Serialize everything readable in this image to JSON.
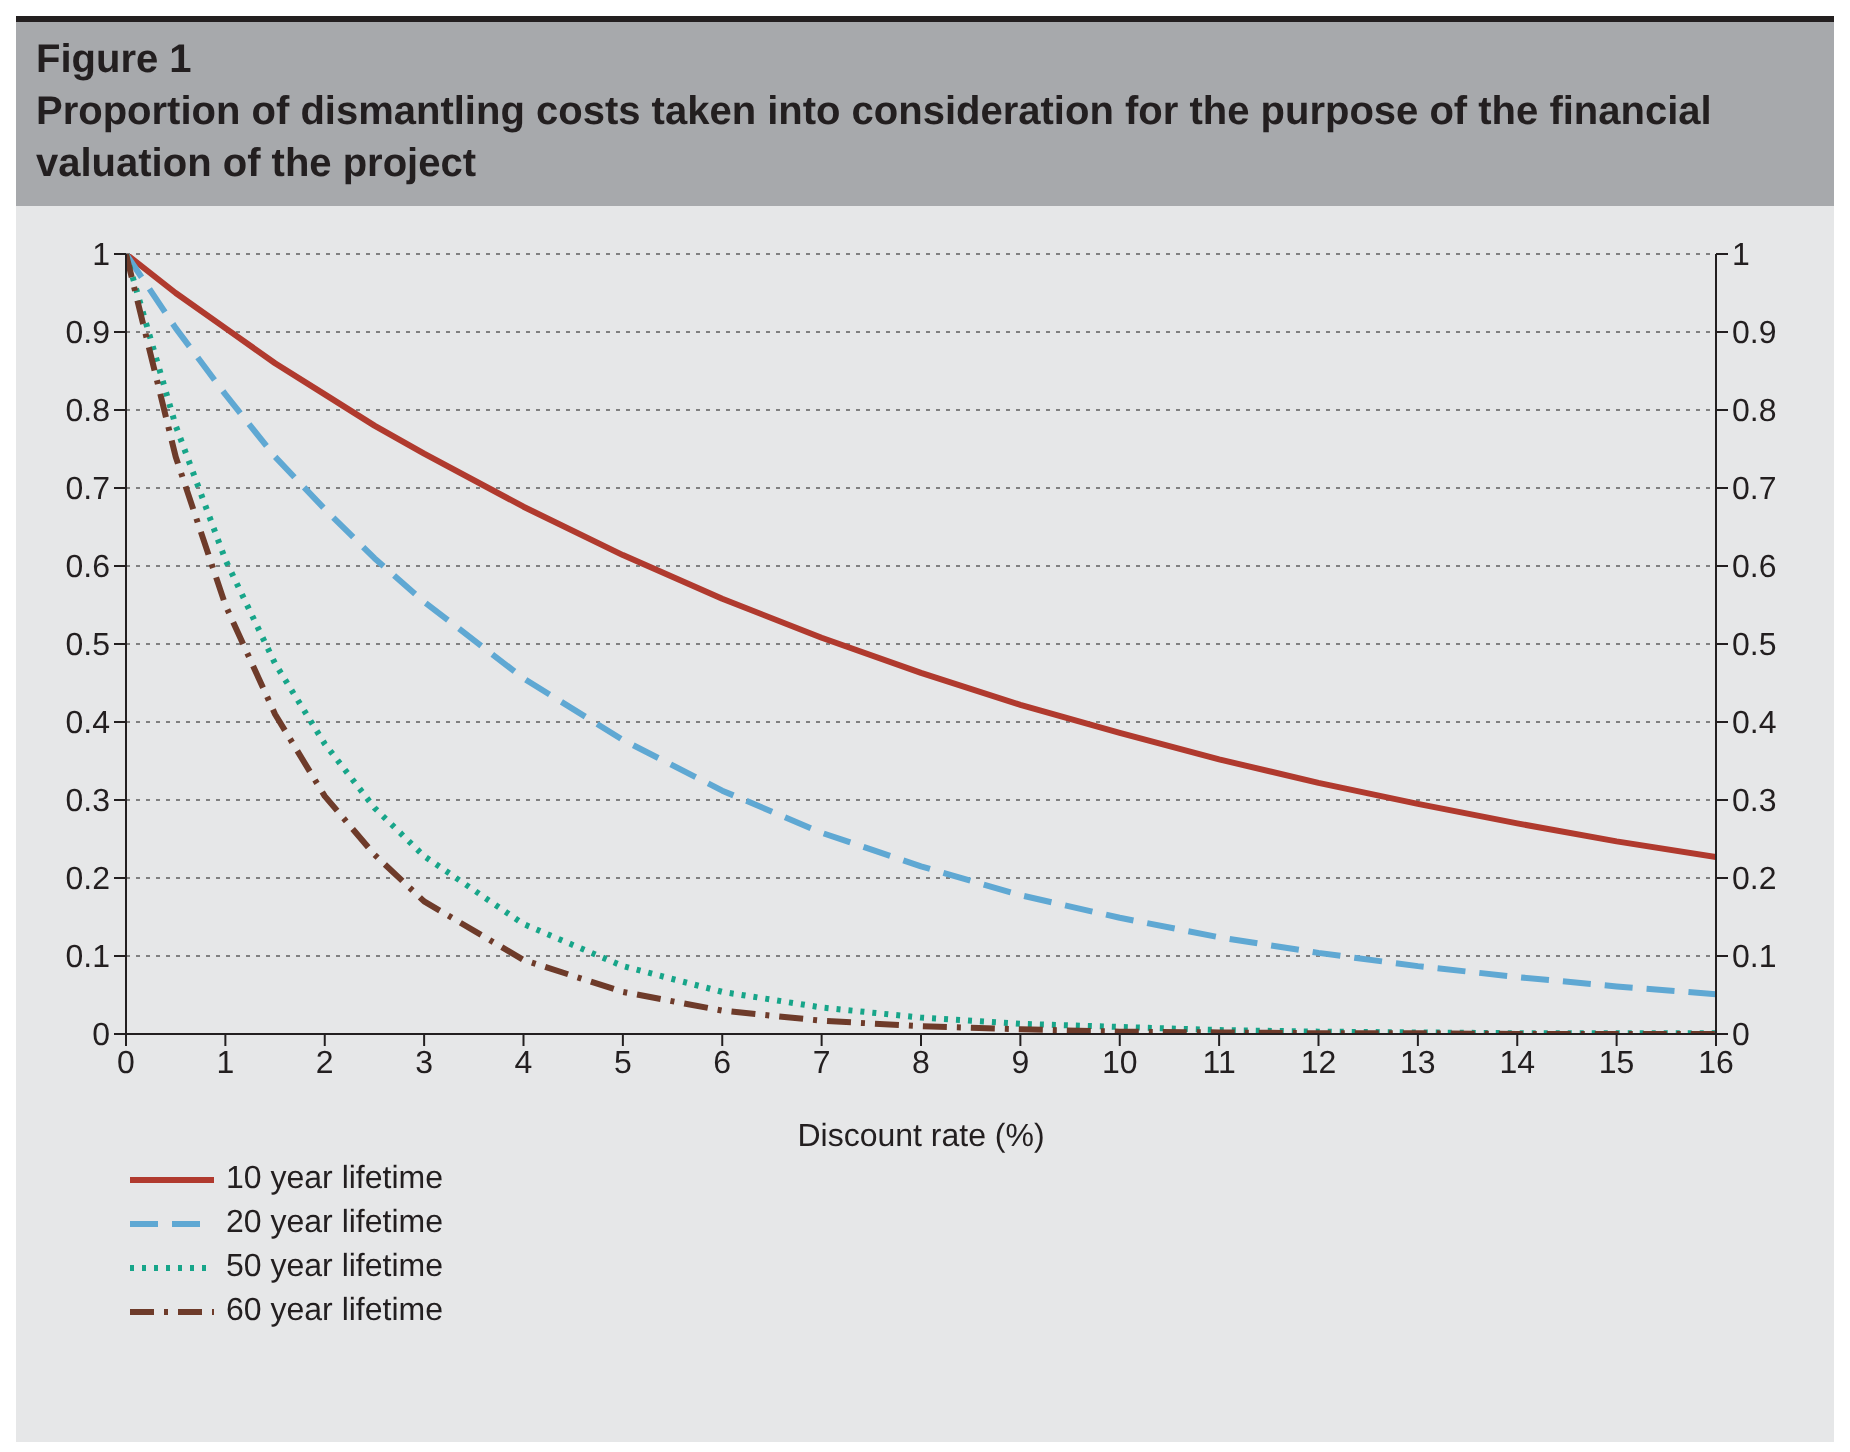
{
  "chart_data": {
    "type": "line",
    "title": "Figure 1",
    "subtitle": "Proportion of dismantling costs taken into consideration for the purpose of the financial valuation of the project",
    "xlabel": "Discount rate (%)",
    "x": [
      0,
      0.5,
      1,
      1.5,
      2,
      2.5,
      3,
      4,
      5,
      6,
      7,
      8,
      9,
      10,
      11,
      12,
      13,
      14,
      15,
      16
    ],
    "series": [
      {
        "name": "10 year lifetime",
        "color": "#b03a2e",
        "line_style": "solid",
        "values": [
          1,
          0.95,
          0.905,
          0.86,
          0.82,
          0.78,
          0.744,
          0.676,
          0.614,
          0.558,
          0.508,
          0.463,
          0.422,
          0.386,
          0.352,
          0.322,
          0.295,
          0.27,
          0.247,
          0.227
        ]
      },
      {
        "name": "20 year lifetime",
        "color": "#5fa8d3",
        "line_style": "dashed",
        "values": [
          1,
          0.905,
          0.82,
          0.74,
          0.673,
          0.61,
          0.554,
          0.456,
          0.377,
          0.312,
          0.258,
          0.215,
          0.178,
          0.149,
          0.124,
          0.104,
          0.087,
          0.073,
          0.061,
          0.051
        ]
      },
      {
        "name": "50 year lifetime",
        "color": "#17a589",
        "line_style": "dotted",
        "values": [
          1,
          0.78,
          0.608,
          0.475,
          0.372,
          0.29,
          0.228,
          0.141,
          0.087,
          0.054,
          0.034,
          0.021,
          0.013,
          0.009,
          0.005,
          0.003,
          0.002,
          0.001,
          0.001,
          0.001
        ]
      },
      {
        "name": "60 year lifetime",
        "color": "#6e3b2a",
        "line_style": "dashdot",
        "values": [
          1,
          0.74,
          0.55,
          0.41,
          0.305,
          0.23,
          0.17,
          0.095,
          0.054,
          0.03,
          0.017,
          0.01,
          0.006,
          0.003,
          0.002,
          0.001,
          0.001,
          0,
          0,
          0
        ]
      }
    ],
    "xlim": [
      0,
      16
    ],
    "xticks": [
      0,
      1,
      2,
      3,
      4,
      5,
      6,
      7,
      8,
      9,
      10,
      11,
      12,
      13,
      14,
      15,
      16
    ],
    "ylim": [
      0,
      1
    ],
    "yticks": [
      0,
      0.1,
      0.2,
      0.3,
      0.4,
      0.5,
      0.6,
      0.7,
      0.8,
      0.9,
      1
    ],
    "y2lim": [
      0,
      1
    ],
    "y2ticks": [
      0,
      0.1,
      0.2,
      0.3,
      0.4,
      0.5,
      0.6,
      0.7,
      0.8,
      0.9,
      1
    ],
    "grid": "y",
    "legend": "bottom left",
    "marker": "none"
  }
}
